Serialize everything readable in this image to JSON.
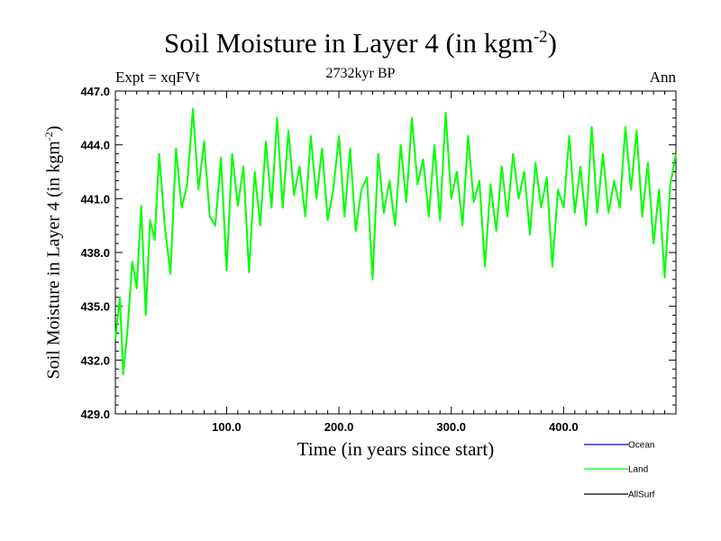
{
  "chart_data": {
    "type": "line",
    "title": "Soil Moisture in Layer 4 (in kgm",
    "title_exponent": "-2",
    "title_suffix": ")",
    "subtitle": "2732kyr BP",
    "experiment": "Expt = xqFVt",
    "season": "Ann",
    "xlabel": "Time (in years since start)",
    "ylabel": "Soil Moisture in Layer 4 (in kgm",
    "ylabel_exponent": "-2",
    "ylabel_suffix": ")",
    "xlim": [
      1,
      500
    ],
    "ylim": [
      429.0,
      447.0
    ],
    "x_ticks": [
      100,
      200,
      300,
      400
    ],
    "x_tick_labels": [
      "100.0",
      "200.0",
      "300.0",
      "400.0"
    ],
    "y_ticks": [
      429,
      432,
      435,
      438,
      441,
      444,
      447
    ],
    "y_tick_labels": [
      "429.0",
      "432.0",
      "435.0",
      "438.0",
      "441.0",
      "444.0",
      "447.0"
    ],
    "series": [
      {
        "name": "Ocean",
        "color": "#0000ff",
        "values": []
      },
      {
        "name": "Land",
        "color": "#00ff00",
        "x": [
          1,
          5,
          8,
          12,
          16,
          20,
          24,
          28,
          32,
          36,
          40,
          45,
          50,
          55,
          60,
          65,
          70,
          75,
          80,
          85,
          90,
          95,
          100,
          105,
          110,
          115,
          120,
          125,
          130,
          135,
          140,
          145,
          150,
          155,
          160,
          165,
          170,
          175,
          180,
          185,
          190,
          195,
          200,
          205,
          210,
          215,
          220,
          225,
          230,
          235,
          240,
          245,
          250,
          255,
          260,
          265,
          270,
          275,
          280,
          285,
          290,
          295,
          300,
          305,
          310,
          315,
          320,
          325,
          330,
          335,
          340,
          345,
          350,
          355,
          360,
          365,
          370,
          375,
          380,
          385,
          390,
          395,
          400,
          405,
          410,
          415,
          420,
          425,
          430,
          435,
          440,
          445,
          450,
          455,
          460,
          465,
          470,
          475,
          480,
          485,
          490,
          495,
          500
        ],
        "values": [
          433.2,
          435.5,
          431.2,
          433.8,
          437.5,
          436.0,
          440.6,
          434.5,
          439.8,
          438.7,
          443.5,
          439.5,
          436.8,
          443.8,
          440.5,
          441.8,
          446.0,
          441.5,
          444.2,
          440.0,
          439.5,
          443.3,
          437.0,
          443.5,
          440.6,
          442.8,
          436.9,
          442.5,
          439.5,
          444.2,
          440.5,
          445.5,
          440.5,
          444.8,
          441.2,
          442.8,
          440.0,
          444.5,
          441.0,
          443.8,
          439.8,
          441.5,
          444.5,
          440.0,
          443.8,
          439.2,
          441.5,
          442.2,
          436.5,
          443.5,
          440.2,
          442.0,
          439.5,
          444.0,
          440.8,
          445.5,
          441.8,
          443.2,
          440.0,
          444.0,
          439.8,
          445.8,
          441.0,
          442.5,
          439.5,
          444.5,
          440.8,
          442.0,
          437.2,
          441.8,
          439.2,
          442.8,
          440.0,
          443.5,
          441.0,
          442.5,
          439.0,
          443.0,
          440.5,
          442.2,
          437.2,
          441.5,
          440.5,
          444.5,
          440.2,
          442.8,
          439.5,
          445.0,
          440.2,
          443.5,
          440.2,
          442.0,
          440.5,
          445.0,
          441.5,
          444.8,
          440.0,
          443.0,
          438.5,
          441.5,
          436.6,
          441.8,
          443.5
        ]
      },
      {
        "name": "AllSurf",
        "color": "#000000",
        "values": []
      }
    ],
    "legend_position": "bottom-right"
  }
}
